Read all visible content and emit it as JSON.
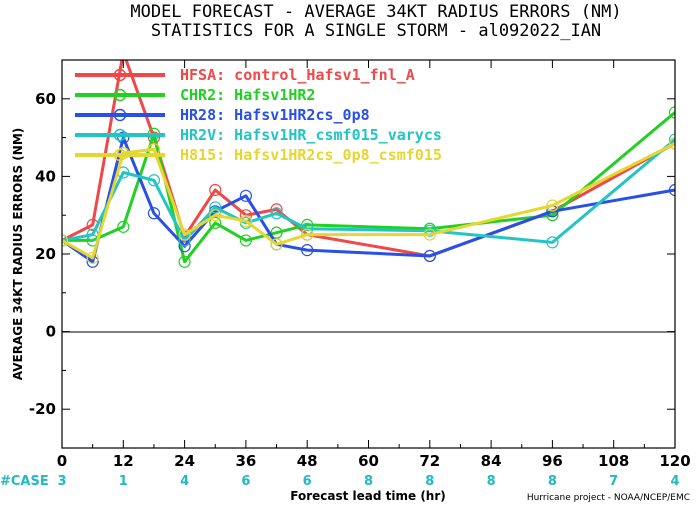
{
  "chart_data": {
    "type": "line",
    "title": [
      "MODEL FORECAST - AVERAGE 34KT RADIUS ERRORS (NM)",
      "STATISTICS FOR A SINGLE STORM - al092022_IAN"
    ],
    "xlabel": "Forecast lead time (hr)",
    "ylabel": "AVERAGE 34KT RADIUS ERRORS (NM)",
    "xlim": [
      0,
      120
    ],
    "ylim": [
      -30,
      70
    ],
    "xticks": [
      0,
      12,
      24,
      36,
      48,
      60,
      72,
      84,
      96,
      108,
      120
    ],
    "yticks": [
      -20,
      0,
      20,
      40,
      60
    ],
    "grid": false,
    "legend_position": "top-left",
    "zero_line": true,
    "case_label": "#CASE",
    "cases": [
      {
        "x": 0,
        "n": "3"
      },
      {
        "x": 12,
        "n": "1"
      },
      {
        "x": 24,
        "n": "4"
      },
      {
        "x": 36,
        "n": "6"
      },
      {
        "x": 48,
        "n": "6"
      },
      {
        "x": 60,
        "n": "8"
      },
      {
        "x": 72,
        "n": "8"
      },
      {
        "x": 84,
        "n": "8"
      },
      {
        "x": 96,
        "n": "8"
      },
      {
        "x": 108,
        "n": "7"
      },
      {
        "x": 120,
        "n": "4"
      }
    ],
    "case_color": "#22b8c4",
    "credit": "Hurricane project - NOAA/NCEP/EMC",
    "series": [
      {
        "name": "HFSA: control_Hafsv1_fnl_A",
        "color": "#f04848",
        "x": [
          0,
          6,
          12,
          18,
          24,
          30,
          36,
          42,
          48,
          72,
          96,
          120
        ],
        "y": [
          23.5,
          27.5,
          72,
          50,
          24.5,
          36.5,
          30,
          31.5,
          25,
          19.5,
          31,
          48.5
        ]
      },
      {
        "name": "CHR2: Hafsv1HR2",
        "color": "#22d022",
        "x": [
          0,
          6,
          12,
          18,
          24,
          30,
          36,
          42,
          48,
          72,
          96,
          120
        ],
        "y": [
          23.5,
          23.5,
          27,
          51,
          18,
          28,
          23.5,
          25.5,
          27.5,
          26.5,
          30,
          56.5
        ]
      },
      {
        "name": "HR28: Hafsv1HR2cs_0p8",
        "color": "#2850e6",
        "x": [
          0,
          6,
          12,
          18,
          24,
          30,
          36,
          42,
          48,
          72,
          96,
          120
        ],
        "y": [
          23.5,
          18,
          50,
          30.5,
          22,
          31,
          35,
          22.5,
          21,
          19.5,
          31,
          36.5
        ]
      },
      {
        "name": "HR2V: Hafsv1HR_csmf015_varycs",
        "color": "#22c4c4",
        "x": [
          0,
          6,
          12,
          18,
          24,
          30,
          36,
          42,
          48,
          72,
          96,
          120
        ],
        "y": [
          23.5,
          25,
          41,
          39,
          23.5,
          32,
          28,
          30.5,
          26.5,
          26,
          23,
          49.5
        ]
      },
      {
        "name": "H815: Hafsv1HR2cs_0p8_csmf015",
        "color": "#e6d630",
        "x": [
          0,
          6,
          12,
          18,
          24,
          30,
          36,
          42,
          48,
          72,
          96,
          120
        ],
        "y": [
          23.5,
          19,
          46,
          47,
          25,
          30,
          28.5,
          22.5,
          25,
          25,
          32.5,
          48.5
        ]
      }
    ]
  }
}
